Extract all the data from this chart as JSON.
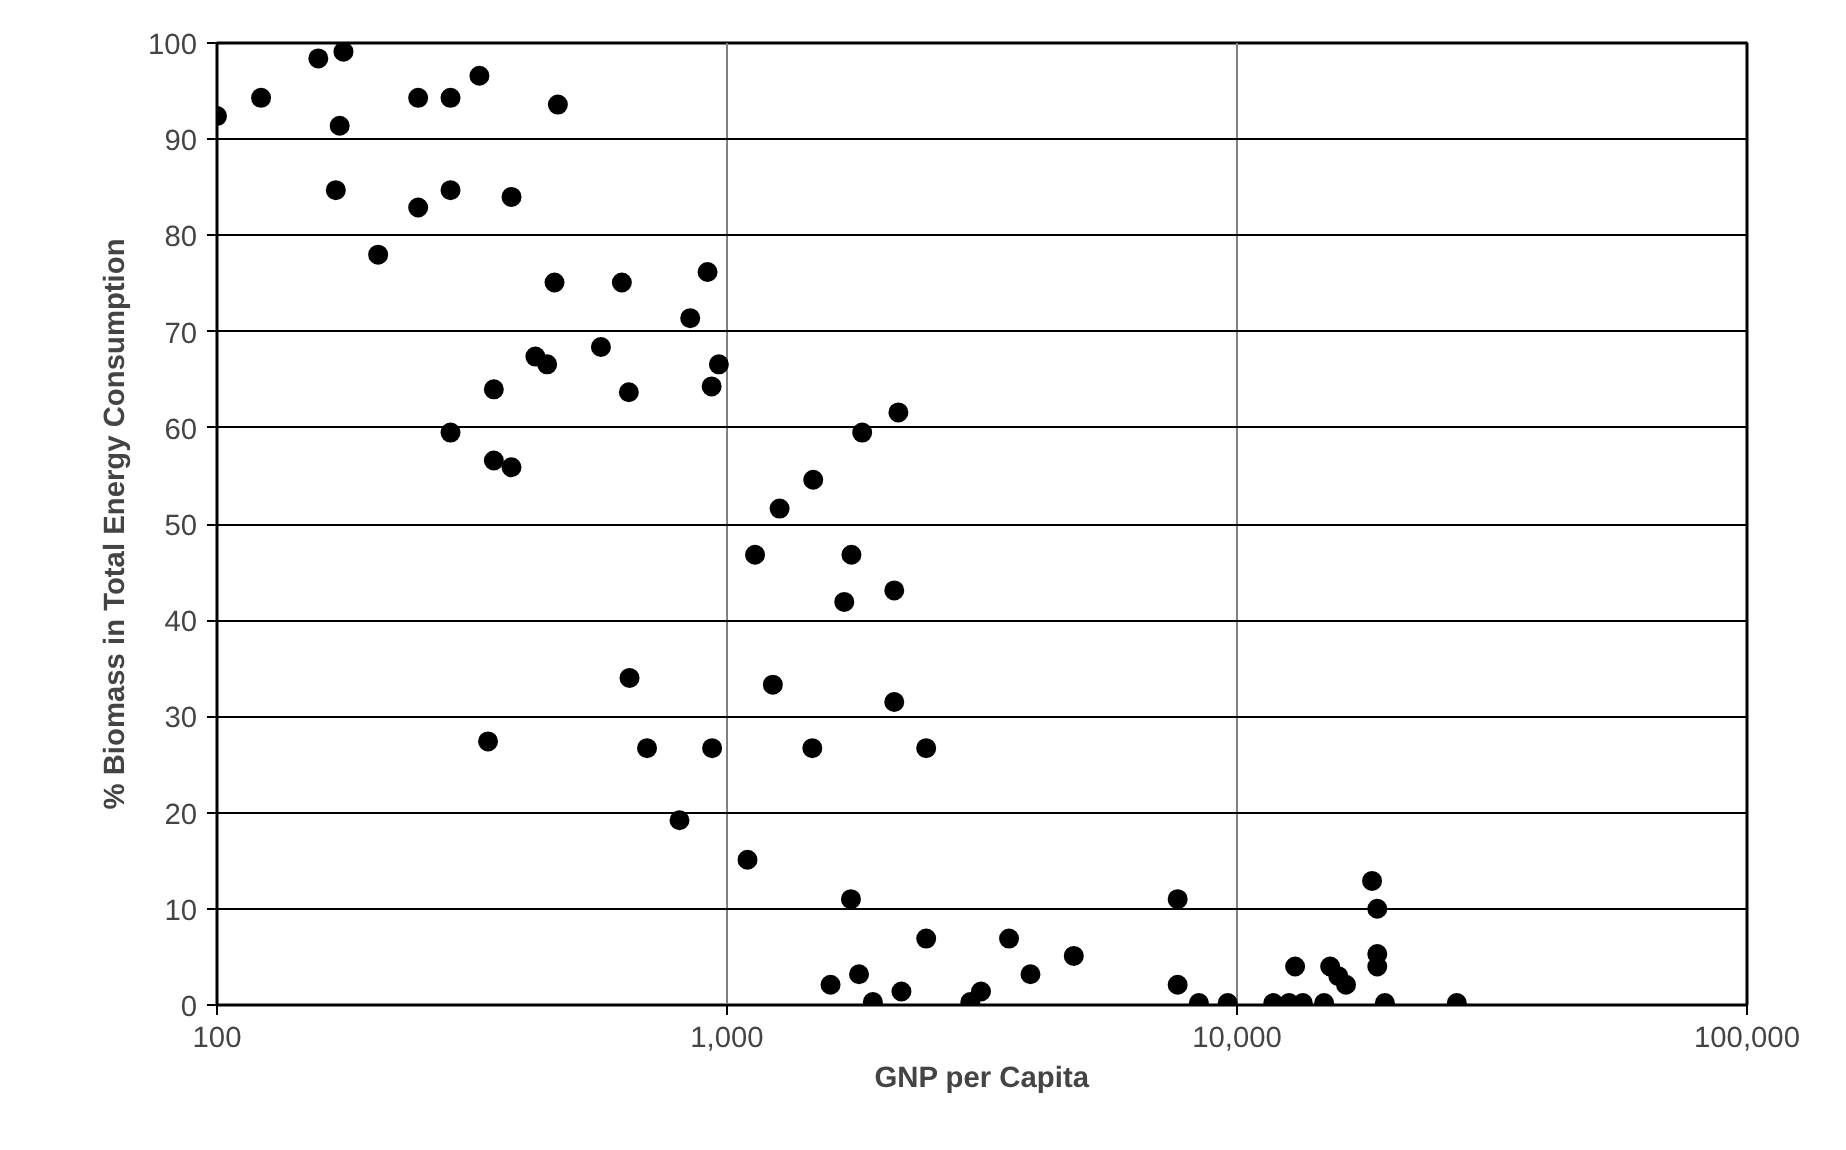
{
  "chart_data": {
    "type": "scatter",
    "xlabel": "GNP per Capita",
    "ylabel": "% Biomass in Total Energy Consumption",
    "log": "x",
    "grid": true,
    "marker": "circle",
    "color": "#000000",
    "xlim": [
      100,
      100000
    ],
    "ylim": [
      0,
      100
    ],
    "xticks": [
      {
        "value": 100,
        "label": "100"
      },
      {
        "value": 1000,
        "label": "1,000"
      },
      {
        "value": 10000,
        "label": "10,000"
      },
      {
        "value": 100000,
        "label": "100,000"
      }
    ],
    "yticks": [
      0,
      10,
      20,
      30,
      40,
      50,
      60,
      70,
      80,
      90,
      100
    ],
    "x": [
      100,
      122,
      158,
      177,
      174,
      171,
      207,
      248,
      248,
      287,
      287,
      287,
      327,
      349,
      349,
      378,
      378,
      466,
      459,
      421,
      444,
      566,
      622,
      642,
      847,
      916,
      964,
      933,
      2168,
      1841,
      1476,
      1268,
      1135,
      1754,
      1698,
      2128,
      644,
      1230,
      2128,
      697,
      935,
      1470,
      2458,
      807,
      1097,
      1750,
      2458,
      3573,
      4786,
      3936,
      1815,
      1596,
      2198,
      1932,
      3148,
      3000,
      340,
      7650,
      7650,
      8420,
      9590,
      11780,
      12650,
      13000,
      13460,
      14820,
      15230,
      15800,
      16360,
      18400,
      18840,
      18840,
      18840,
      19500,
      26980
    ],
    "values": [
      92.4,
      94.3,
      98.4,
      99.1,
      91.4,
      84.7,
      78.0,
      94.3,
      82.9,
      94.3,
      84.7,
      59.5,
      96.6,
      64.0,
      56.6,
      55.9,
      84.0,
      93.6,
      75.1,
      67.4,
      66.6,
      68.4,
      75.1,
      63.7,
      71.4,
      76.2,
      66.6,
      64.3,
      61.6,
      59.5,
      54.6,
      51.6,
      46.8,
      46.8,
      41.9,
      43.1,
      34.0,
      33.3,
      31.5,
      26.7,
      26.7,
      26.7,
      26.7,
      19.2,
      15.1,
      11.0,
      6.9,
      6.9,
      5.1,
      3.2,
      3.2,
      2.1,
      1.4,
      0.3,
      1.4,
      0.3,
      27.4,
      11.0,
      2.1,
      0.2,
      0.2,
      0.2,
      0.2,
      4.0,
      0.2,
      0.2,
      4.0,
      3.0,
      2.1,
      12.9,
      10.0,
      5.3,
      4.0,
      0.2,
      0.2
    ]
  }
}
